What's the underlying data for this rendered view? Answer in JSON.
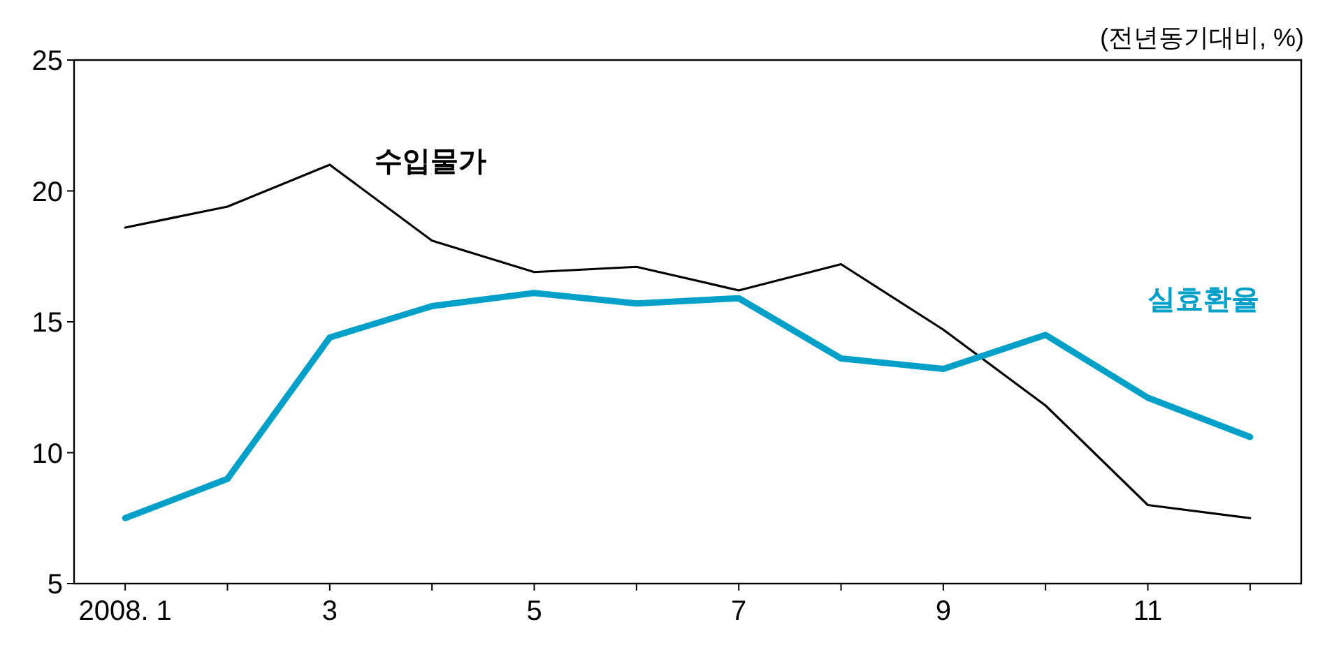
{
  "chart_data": {
    "type": "line",
    "ylabel": "(전년동기대비, %)",
    "categories": [
      "2008. 1",
      null,
      "3",
      null,
      "5",
      null,
      "7",
      null,
      "9",
      null,
      "11",
      null
    ],
    "ylim": [
      5,
      25
    ],
    "yticks": [
      5,
      10,
      15,
      20,
      25
    ],
    "grid": false,
    "legend": false,
    "marker": "none",
    "line_style": "solid",
    "series": [
      {
        "name": "수입물가",
        "color": "#000000",
        "values": [
          18.6,
          19.4,
          21.0,
          18.1,
          16.9,
          17.1,
          16.2,
          17.2,
          14.7,
          11.8,
          8.0,
          7.5
        ]
      },
      {
        "name": "실효환율",
        "color": "#00a0c8",
        "values": [
          7.5,
          9.0,
          14.4,
          15.6,
          16.1,
          15.7,
          15.9,
          13.6,
          13.2,
          14.5,
          12.1,
          10.6
        ]
      }
    ]
  }
}
